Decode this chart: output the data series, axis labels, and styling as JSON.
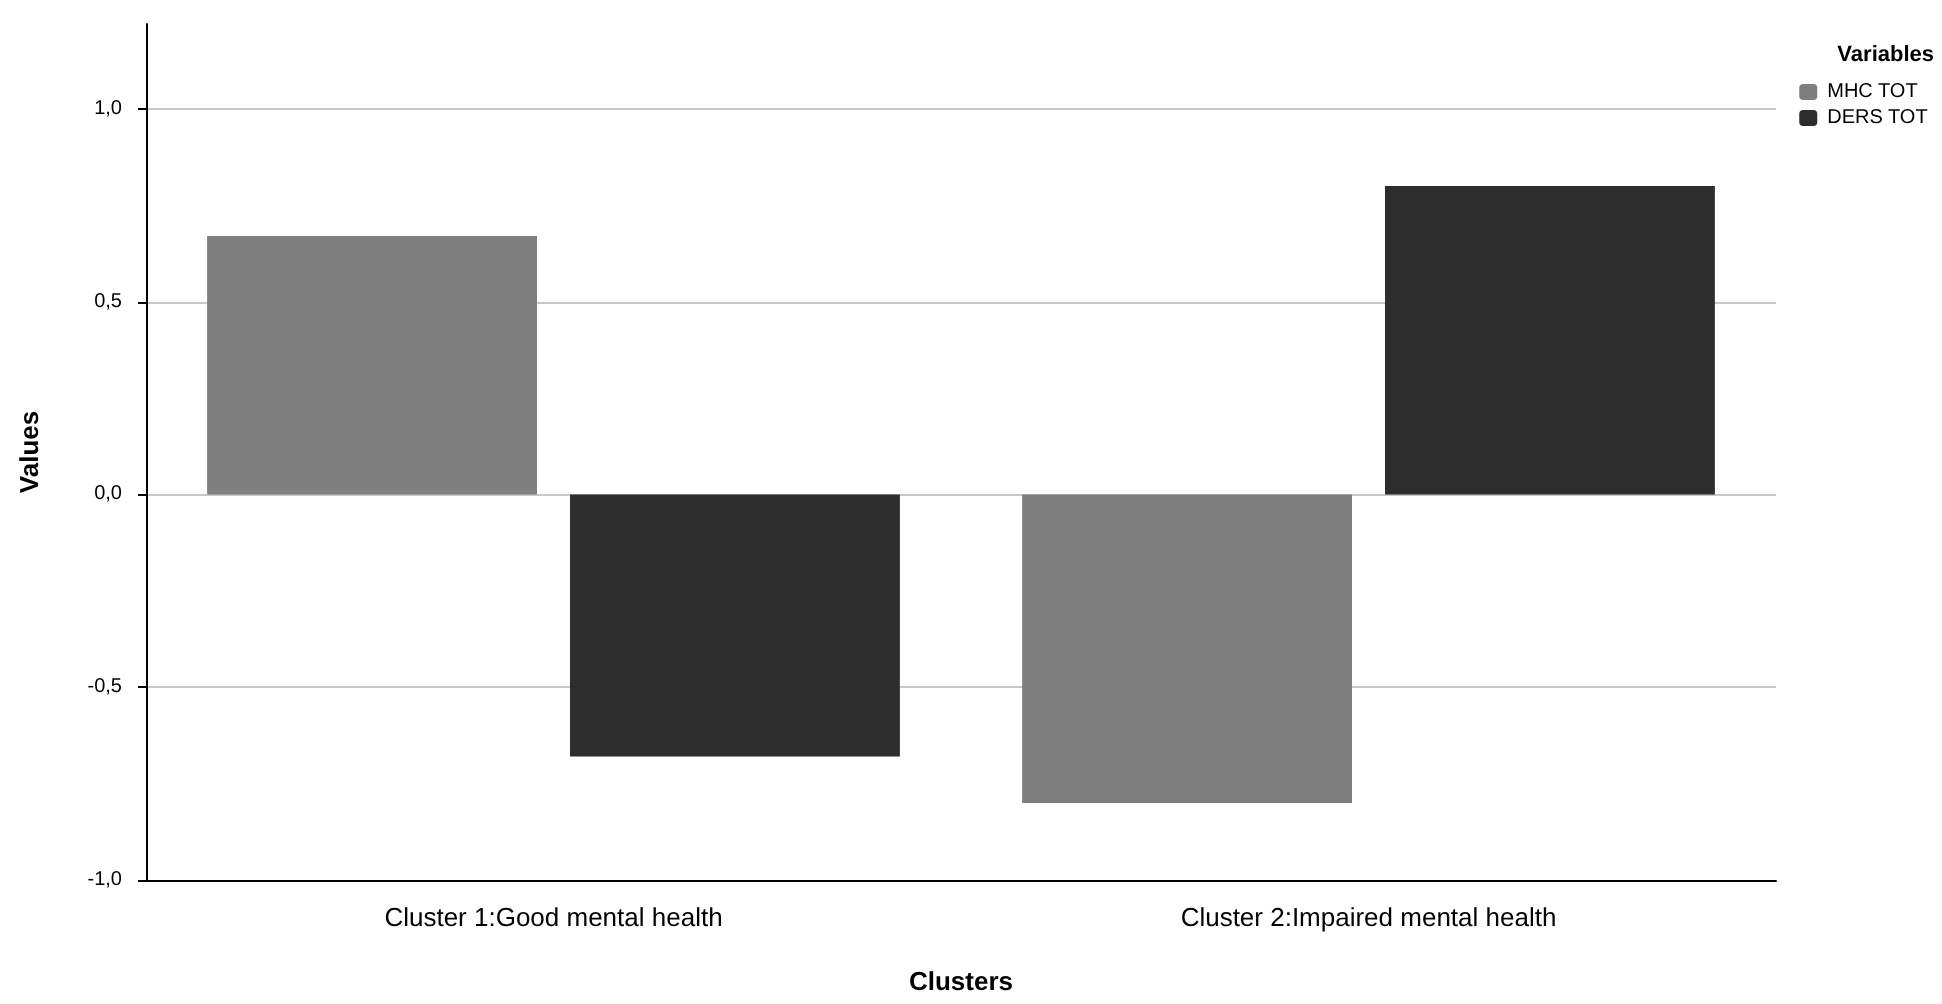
{
  "chart_data": {
    "type": "bar",
    "xlabel": "Clusters",
    "ylabel": "Values",
    "legend_title": "Variables",
    "categories": [
      "Cluster 1:Good mental health",
      "Cluster 2:Impaired mental health"
    ],
    "series": [
      {
        "name": "MHC TOT",
        "color": "#7f7f7f",
        "values": [
          0.67,
          -0.8
        ]
      },
      {
        "name": "DERS TOT",
        "color": "#2d2d2d",
        "values": [
          -0.68,
          0.8
        ]
      }
    ],
    "ylim": [
      -1.0,
      1.22
    ],
    "yticks": [
      {
        "value": -1,
        "label": "-1,0"
      },
      {
        "value": -0.5,
        "label": "-0,5"
      },
      {
        "value": 0,
        "label": "0,0"
      },
      {
        "value": 0.5,
        "label": "0,5"
      },
      {
        "value": 1,
        "label": "1,0"
      }
    ],
    "grid": "y",
    "legend": "top right"
  }
}
